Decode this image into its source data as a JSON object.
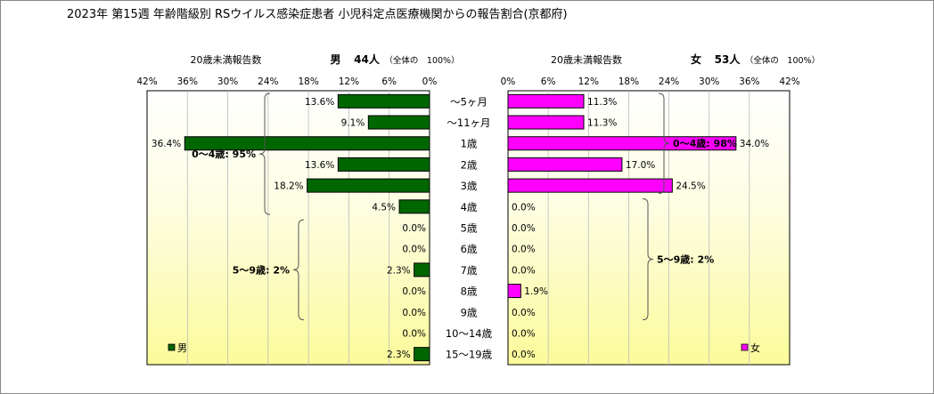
{
  "chart_data": {
    "type": "bar",
    "title": "2023年 第15週 年齢階級別 RSウイルス感染症患者 小児科定点医療機関からの報告割合(京都府)",
    "categories": [
      "～5ヶ月",
      "～11ヶ月",
      "1歳",
      "2歳",
      "3歳",
      "4歳",
      "5歳",
      "6歳",
      "7歳",
      "8歳",
      "9歳",
      "10～14歳",
      "15～19歳"
    ],
    "xlim": [
      0,
      42
    ],
    "xticks": [
      "0%",
      "6%",
      "12%",
      "18%",
      "24%",
      "30%",
      "36%",
      "42%"
    ],
    "series": [
      {
        "name": "男",
        "header_label": "20歳未満報告数",
        "header_sex": "男",
        "header_count": "44人",
        "header_note": "（全体の　100%）",
        "color": "#006600",
        "values": [
          13.6,
          9.1,
          36.4,
          13.6,
          18.2,
          4.5,
          0.0,
          0.0,
          2.3,
          0.0,
          0.0,
          0.0,
          2.3
        ],
        "labels": [
          "13.6%",
          "9.1%",
          "36.4%",
          "13.6%",
          "18.2%",
          "4.5%",
          "0.0%",
          "0.0%",
          "2.3%",
          "0.0%",
          "0.0%",
          "0.0%",
          "2.3%"
        ],
        "legend": "男",
        "groups": [
          {
            "label": "0～4歳: 95%",
            "from": 0,
            "to": 5
          },
          {
            "label": "5～9歳: 2%",
            "from": 6,
            "to": 10
          }
        ]
      },
      {
        "name": "女",
        "header_label": "20歳未満報告数",
        "header_sex": "女",
        "header_count": "53人",
        "header_note": "（全体の　100%）",
        "color": "#ff00ff",
        "values": [
          11.3,
          11.3,
          34.0,
          17.0,
          24.5,
          0.0,
          0.0,
          0.0,
          0.0,
          1.9,
          0.0,
          0.0,
          0.0
        ],
        "labels": [
          "11.3%",
          "11.3%",
          "34.0%",
          "17.0%",
          "24.5%",
          "0.0%",
          "0.0%",
          "0.0%",
          "0.0%",
          "1.9%",
          "0.0%",
          "0.0%",
          "0.0%"
        ],
        "legend": "女",
        "groups": [
          {
            "label": "0～4歳: 98%",
            "from": 0,
            "to": 4
          },
          {
            "label": "5～9歳: 2%",
            "from": 5,
            "to": 10
          }
        ]
      }
    ],
    "grid": true,
    "legend_position": "bottom"
  }
}
